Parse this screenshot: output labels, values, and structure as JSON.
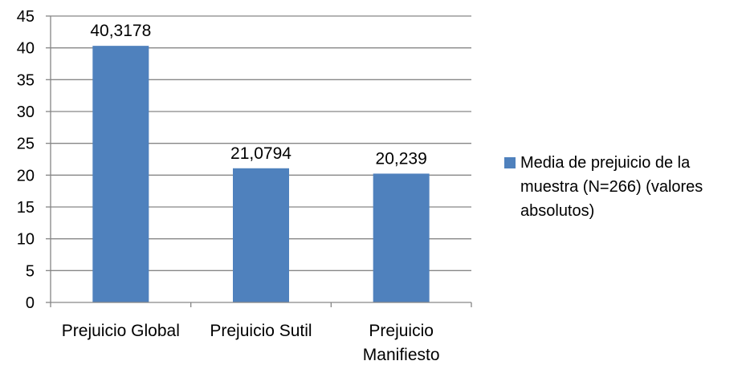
{
  "colors": {
    "bar": "#4F81BD",
    "grid": "#868686",
    "axis": "#868686"
  },
  "chart_data": {
    "type": "bar",
    "categories": [
      "Prejuicio Global",
      "Prejuicio Sutil",
      "Prejuicio Manifiesto"
    ],
    "category_lines": [
      [
        "Prejuicio Global"
      ],
      [
        "Prejuicio Sutil"
      ],
      [
        "Prejuicio",
        "Manifiesto"
      ]
    ],
    "series": [
      {
        "name": "Media de prejuicio de la muestra (N=266) (valores absolutos)",
        "values": [
          40.3178,
          21.0794,
          20.239
        ],
        "labels": [
          "40,3178",
          "21,0794",
          "20,239"
        ]
      }
    ],
    "yticks": [
      0,
      5,
      10,
      15,
      20,
      25,
      30,
      35,
      40,
      45
    ],
    "ylim": [
      0,
      45
    ],
    "grid": true,
    "legend_position": "right"
  }
}
